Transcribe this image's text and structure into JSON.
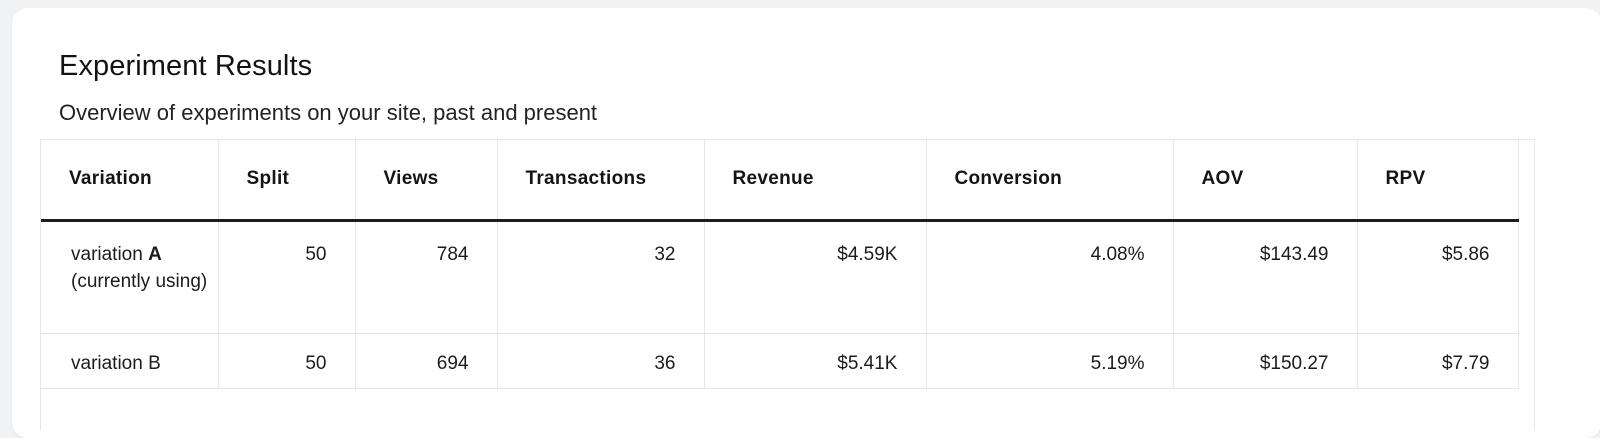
{
  "header": {
    "title": "Experiment Results",
    "subtitle": "Overview of experiments on your site, past and present"
  },
  "table": {
    "columns": [
      "Variation",
      "Split",
      "Views",
      "Transactions",
      "Revenue",
      "Conversion",
      "AOV",
      "RPV"
    ],
    "rows": [
      {
        "variation_prefix": "variation ",
        "variation_letter": "A",
        "variation_suffix": " (currently using)",
        "split": "50",
        "views": "784",
        "transactions": "32",
        "revenue": "$4.59K",
        "conversion": "4.08%",
        "aov": "$143.49",
        "rpv": "$5.86"
      },
      {
        "variation_prefix": "variation B",
        "variation_letter": "",
        "variation_suffix": "",
        "split": "50",
        "views": "694",
        "transactions": "36",
        "revenue": "$5.41K",
        "conversion": "5.19%",
        "aov": "$150.27",
        "rpv": "$7.79"
      }
    ]
  }
}
